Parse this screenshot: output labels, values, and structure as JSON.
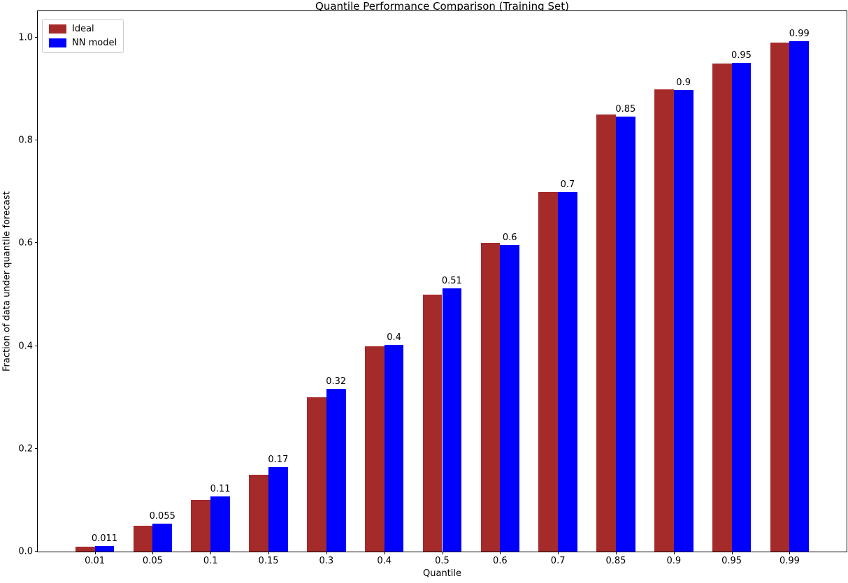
{
  "figure": {
    "title": "Quantile Performance Comparison (Training Set)",
    "xlabel": "Quantile",
    "ylabel": "Fraction of data under quantile forecast"
  },
  "legend": {
    "items": [
      {
        "label": "Ideal",
        "color": "#A52A2A"
      },
      {
        "label": "NN model",
        "color": "#0000FF"
      }
    ]
  },
  "chart_data": {
    "type": "bar",
    "title": "Quantile Performance Comparison (Training Set)",
    "xlabel": "Quantile",
    "ylabel": "Fraction of data under quantile forecast",
    "categories": [
      "0.01",
      "0.05",
      "0.1",
      "0.15",
      "0.3",
      "0.4",
      "0.5",
      "0.6",
      "0.7",
      "0.85",
      "0.9",
      "0.95",
      "0.99"
    ],
    "series": [
      {
        "name": "Ideal",
        "color": "#A52A2A",
        "values": [
          0.01,
          0.05,
          0.1,
          0.15,
          0.3,
          0.4,
          0.5,
          0.6,
          0.7,
          0.85,
          0.9,
          0.95,
          0.99
        ]
      },
      {
        "name": "NN model",
        "color": "#0000FF",
        "values": [
          0.011,
          0.055,
          0.107,
          0.165,
          0.316,
          0.402,
          0.512,
          0.597,
          0.699,
          0.847,
          0.898,
          0.951,
          0.993
        ],
        "bar_labels": [
          "0.011",
          "0.055",
          "0.11",
          "0.17",
          "0.32",
          "0.4",
          "0.51",
          "0.6",
          "0.7",
          "0.85",
          "0.9",
          "0.95",
          "0.99"
        ]
      }
    ],
    "yticks": [
      0.0,
      0.2,
      0.4,
      0.6,
      0.8,
      1.0
    ],
    "ytick_labels": [
      "0.0",
      "0.2",
      "0.4",
      "0.6",
      "0.8",
      "1.0"
    ],
    "ylim": [
      0,
      1.0515
    ],
    "xlim_units": [
      -0.985,
      12.985
    ],
    "bar_width_units": 0.335,
    "legend_position": "upper left",
    "grid": false
  }
}
